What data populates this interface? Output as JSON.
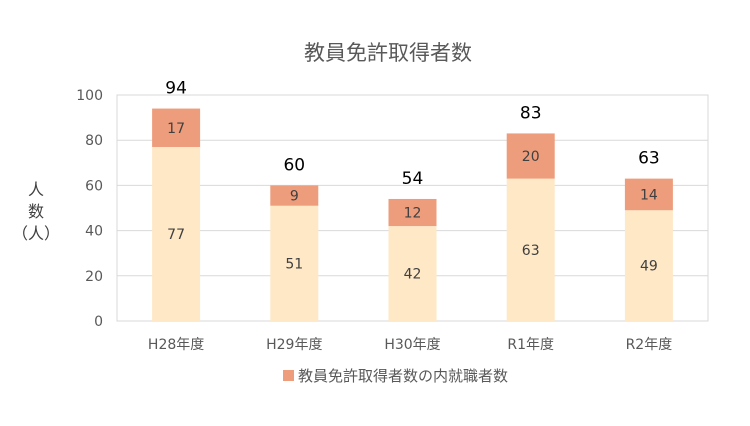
{
  "chart_data": {
    "type": "bar",
    "stacked": true,
    "title": "教員免許取得者数",
    "ylabel_chars": [
      "人",
      "数",
      "（人）"
    ],
    "categories": [
      "H28年度",
      "H29年度",
      "H30年度",
      "R1年度",
      "R2年度"
    ],
    "series": [
      {
        "values": [
          77,
          51,
          42,
          63,
          49
        ],
        "color": "#FFE8C6"
      },
      {
        "name": "教員免許取得者数の内就職者数",
        "values": [
          17,
          9,
          12,
          20,
          14
        ],
        "color": "#EE9D7C"
      }
    ],
    "totals": [
      94,
      60,
      54,
      83,
      63
    ],
    "ylim": [
      0,
      100
    ],
    "yticks": [
      0,
      20,
      40,
      60,
      80,
      100
    ],
    "grid": true,
    "legend": "bottom"
  },
  "colors": {
    "grid": "#D9D9D9",
    "frame": "#D9D9D9"
  }
}
